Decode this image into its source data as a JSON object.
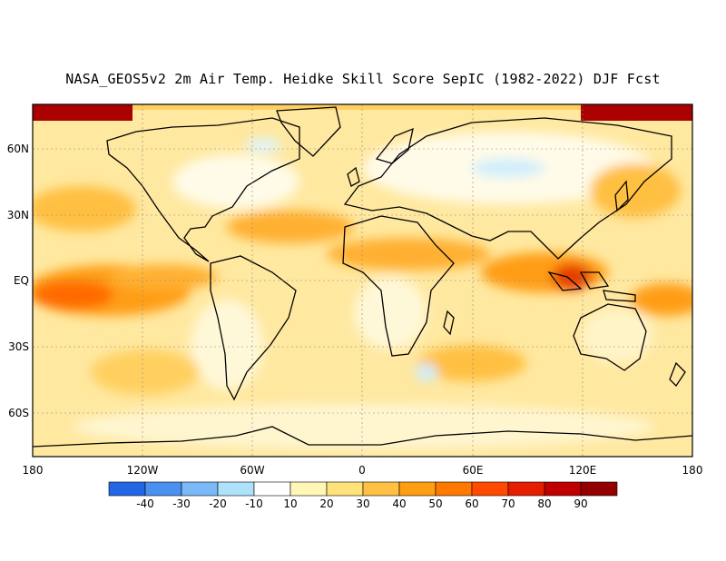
{
  "title": "NASA_GEOS5v2 2m Air Temp. Heidke Skill Score SepIC (1982-2022) DJF Fcst",
  "map": {
    "lat_labels": [
      "60N",
      "30N",
      "EQ",
      "30S",
      "60S"
    ],
    "lon_labels": [
      "180",
      "120W",
      "60W",
      "0",
      "60E",
      "120E",
      "180"
    ]
  },
  "colorbar": {
    "colors": [
      "#2266e6",
      "#4a90f0",
      "#7ab8f8",
      "#aee2fa",
      "#ffffff",
      "#fff6b8",
      "#ffe27a",
      "#ffc043",
      "#ff9e14",
      "#ff7800",
      "#ff4a00",
      "#e61e00",
      "#c00000",
      "#940000"
    ],
    "labels": [
      "-40",
      "-30",
      "-20",
      "-10",
      "10",
      "20",
      "30",
      "40",
      "50",
      "60",
      "70",
      "80",
      "90"
    ]
  },
  "regions": [
    {
      "name": "arctic-high-skill",
      "color": "#aa0000"
    },
    {
      "name": "tropical-pacific-skill",
      "color": "#ff7800"
    },
    {
      "name": "maritime-continent-skill",
      "color": "#e63c00"
    },
    {
      "name": "midlatitude-skill",
      "color": "#ffd060"
    },
    {
      "name": "eurasia-low-skill",
      "color": "#ffffff"
    },
    {
      "name": "negative-skill",
      "color": "#aee2fa"
    }
  ]
}
